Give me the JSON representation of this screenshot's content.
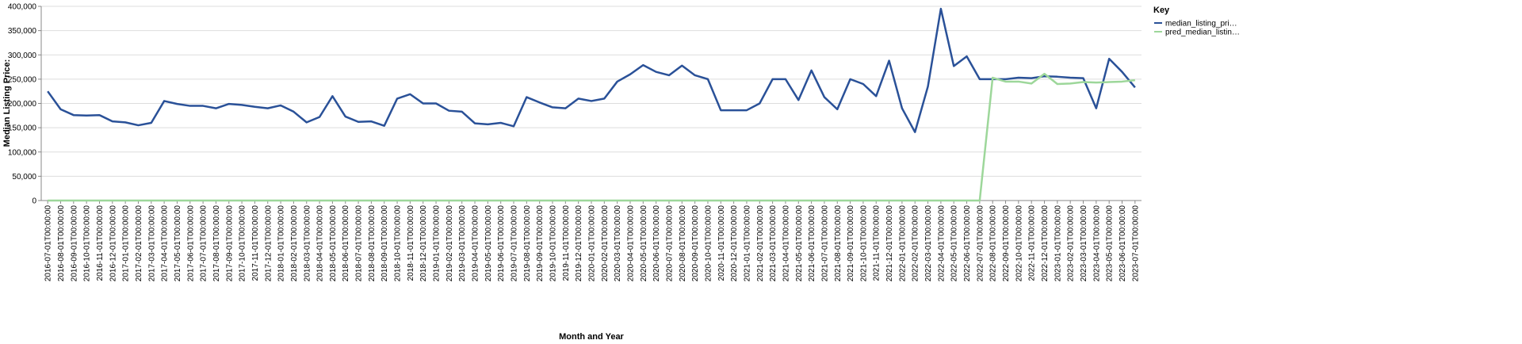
{
  "chart_data": {
    "type": "line",
    "x_label": "Month and Year",
    "y_label": "Median Listing Price:",
    "legend_title": "Key",
    "legend_position": "right",
    "grid": true,
    "categories": [
      "2016-07-01T00:00:00",
      "2016-08-01T00:00:00",
      "2016-09-01T00:00:00",
      "2016-10-01T00:00:00",
      "2016-11-01T00:00:00",
      "2016-12-01T00:00:00",
      "2017-01-01T00:00:00",
      "2017-02-01T00:00:00",
      "2017-03-01T00:00:00",
      "2017-04-01T00:00:00",
      "2017-05-01T00:00:00",
      "2017-06-01T00:00:00",
      "2017-07-01T00:00:00",
      "2017-08-01T00:00:00",
      "2017-09-01T00:00:00",
      "2017-10-01T00:00:00",
      "2017-11-01T00:00:00",
      "2017-12-01T00:00:00",
      "2018-01-01T00:00:00",
      "2018-02-01T00:00:00",
      "2018-03-01T00:00:00",
      "2018-04-01T00:00:00",
      "2018-05-01T00:00:00",
      "2018-06-01T00:00:00",
      "2018-07-01T00:00:00",
      "2018-08-01T00:00:00",
      "2018-09-01T00:00:00",
      "2018-10-01T00:00:00",
      "2018-11-01T00:00:00",
      "2018-12-01T00:00:00",
      "2019-01-01T00:00:00",
      "2019-02-01T00:00:00",
      "2019-03-01T00:00:00",
      "2019-04-01T00:00:00",
      "2019-05-01T00:00:00",
      "2019-06-01T00:00:00",
      "2019-07-01T00:00:00",
      "2019-08-01T00:00:00",
      "2019-09-01T00:00:00",
      "2019-10-01T00:00:00",
      "2019-11-01T00:00:00",
      "2019-12-01T00:00:00",
      "2020-01-01T00:00:00",
      "2020-02-01T00:00:00",
      "2020-03-01T00:00:00",
      "2020-04-01T00:00:00",
      "2020-05-01T00:00:00",
      "2020-06-01T00:00:00",
      "2020-07-01T00:00:00",
      "2020-08-01T00:00:00",
      "2020-09-01T00:00:00",
      "2020-10-01T00:00:00",
      "2020-11-01T00:00:00",
      "2020-12-01T00:00:00",
      "2021-01-01T00:00:00",
      "2021-02-01T00:00:00",
      "2021-03-01T00:00:00",
      "2021-04-01T00:00:00",
      "2021-05-01T00:00:00",
      "2021-06-01T00:00:00",
      "2021-07-01T00:00:00",
      "2021-08-01T00:00:00",
      "2021-09-01T00:00:00",
      "2021-10-01T00:00:00",
      "2021-11-01T00:00:00",
      "2021-12-01T00:00:00",
      "2022-01-01T00:00:00",
      "2022-02-01T00:00:00",
      "2022-03-01T00:00:00",
      "2022-04-01T00:00:00",
      "2022-05-01T00:00:00",
      "2022-06-01T00:00:00",
      "2022-07-01T00:00:00",
      "2022-08-01T00:00:00",
      "2022-09-01T00:00:00",
      "2022-10-01T00:00:00",
      "2022-11-01T00:00:00",
      "2022-12-01T00:00:00",
      "2023-01-01T00:00:00",
      "2023-02-01T00:00:00",
      "2023-03-01T00:00:00",
      "2023-04-01T00:00:00",
      "2023-05-01T00:00:00",
      "2023-06-01T00:00:00",
      "2023-07-01T00:00:00"
    ],
    "series": [
      {
        "name": "median_listing_pri…",
        "color": "#2a5198",
        "values": [
          225000,
          188000,
          176000,
          175000,
          176000,
          163000,
          161000,
          155000,
          160000,
          205000,
          199000,
          195000,
          195000,
          190000,
          199000,
          197000,
          193000,
          190000,
          196000,
          183000,
          161000,
          172000,
          215000,
          173000,
          162000,
          163000,
          154000,
          210000,
          219000,
          200000,
          200000,
          185000,
          183000,
          159000,
          157000,
          160000,
          153000,
          213000,
          202000,
          192000,
          190000,
          210000,
          205000,
          210000,
          245000,
          260000,
          279000,
          265000,
          258000,
          278000,
          258000,
          250000,
          186000,
          186000,
          186000,
          200000,
          250000,
          250000,
          207000,
          268000,
          213000,
          188000,
          250000,
          240000,
          215000,
          288000,
          190000,
          141000,
          235000,
          395000,
          277000,
          297000,
          250000,
          250000,
          250000,
          253000,
          252000,
          256000,
          255000,
          253000,
          252000,
          190000,
          292000,
          265000,
          233000
        ]
      },
      {
        "name": "pred_median_listin…",
        "color": "#9dd79a",
        "values": [
          0,
          0,
          0,
          0,
          0,
          0,
          0,
          0,
          0,
          0,
          0,
          0,
          0,
          0,
          0,
          0,
          0,
          0,
          0,
          0,
          0,
          0,
          0,
          0,
          0,
          0,
          0,
          0,
          0,
          0,
          0,
          0,
          0,
          0,
          0,
          0,
          0,
          0,
          0,
          0,
          0,
          0,
          0,
          0,
          0,
          0,
          0,
          0,
          0,
          0,
          0,
          0,
          0,
          0,
          0,
          0,
          0,
          0,
          0,
          0,
          0,
          0,
          0,
          0,
          0,
          0,
          0,
          0,
          0,
          0,
          0,
          0,
          0,
          253000,
          245000,
          245000,
          241000,
          261000,
          240000,
          241000,
          244000,
          243000,
          244000,
          245000,
          248000
        ]
      }
    ],
    "ylim": [
      0,
      400000
    ],
    "yticks": [
      0,
      {
        "value": 50000,
        "label": "50,000"
      },
      {
        "value": 100000,
        "label": "100,000"
      },
      {
        "value": 150000,
        "label": "150,000"
      },
      {
        "value": 200000,
        "label": "200,000"
      },
      {
        "value": 250000,
        "label": "250,000"
      },
      {
        "value": 300000,
        "label": "300,000"
      },
      {
        "value": 350000,
        "label": "350,000"
      },
      {
        "value": 400000,
        "label": "400,000"
      }
    ]
  }
}
